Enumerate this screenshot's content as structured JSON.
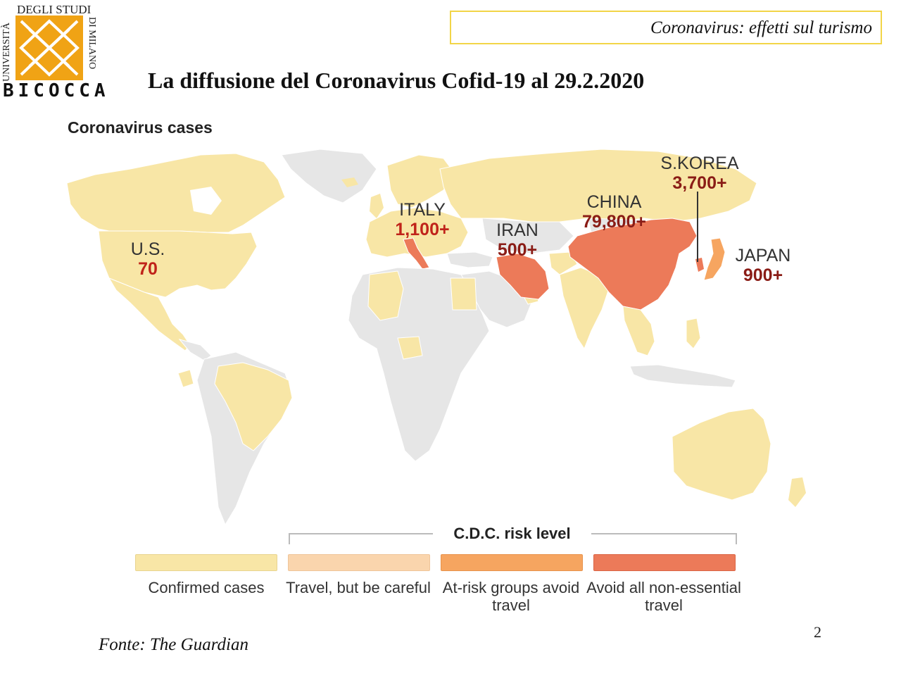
{
  "logo": {
    "top": "DEGLI STUDI",
    "left": "UNIVERSITÀ",
    "right": "DI MILANO",
    "bottom": "BICOCCA"
  },
  "header": {
    "topic": "Coronavirus: effetti sul turismo",
    "title": "La diffusione del Coronavirus Cofid-19 al 29.2.2020"
  },
  "map": {
    "title": "Coronavirus cases",
    "colors": {
      "ocean": "#ffffff",
      "no_data": "#e6e6e6",
      "confirmed": "#f8e6a6",
      "travel_careful": "#fad5ad",
      "at_risk": "#f6a560",
      "avoid": "#ec7a59"
    },
    "countries": [
      {
        "name": "U.S.",
        "cases": "70"
      },
      {
        "name": "ITALY",
        "cases": "1,100+"
      },
      {
        "name": "IRAN",
        "cases": "500+"
      },
      {
        "name": "CHINA",
        "cases": "79,800+"
      },
      {
        "name": "S.KOREA",
        "cases": "3,700+"
      },
      {
        "name": "JAPAN",
        "cases": "900+"
      }
    ]
  },
  "legend": {
    "risk_title": "C.D.C. risk level",
    "items": [
      {
        "label": "Confirmed cases",
        "color": "#f8e6a6"
      },
      {
        "label": "Travel, but be careful",
        "color": "#fad5ad"
      },
      {
        "label": "At-risk groups avoid travel",
        "color": "#f6a560"
      },
      {
        "label": "Avoid all non-essential travel",
        "color": "#ec7a59"
      }
    ]
  },
  "footer": {
    "source": "Fonte: The Guardian",
    "page": "2"
  }
}
